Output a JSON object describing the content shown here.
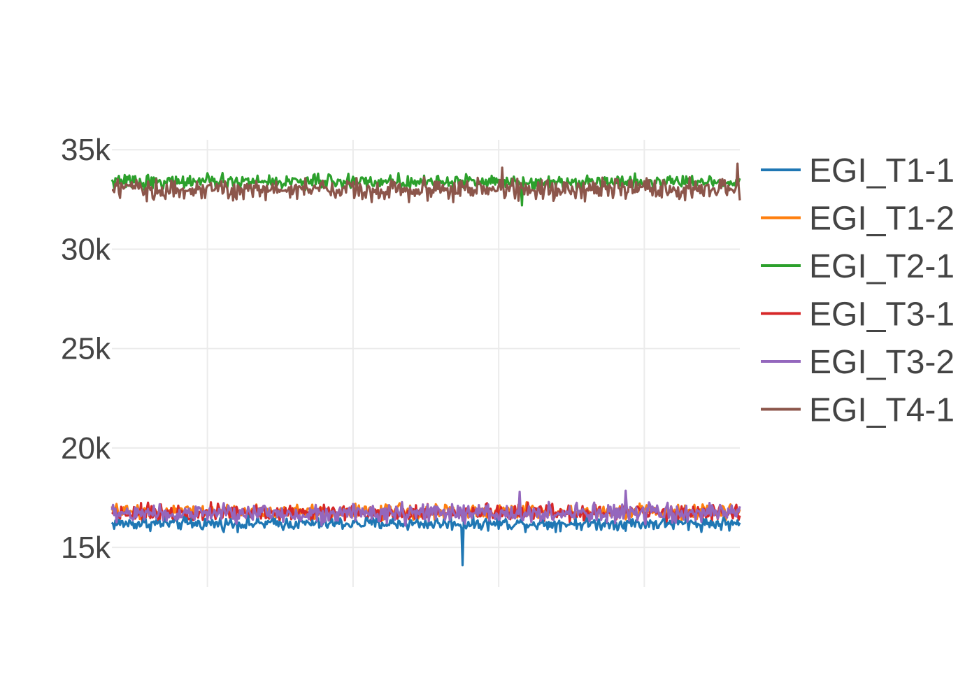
{
  "chart_data": {
    "type": "line",
    "title": "",
    "xlabel": "",
    "ylabel": "",
    "x": {
      "count": 540,
      "start": 0,
      "end": 539,
      "tick_values": [
        82,
        207,
        332,
        457
      ]
    },
    "ylim": [
      13000,
      35500
    ],
    "y_ticks": [
      15000,
      20000,
      25000,
      30000,
      35000
    ],
    "y_tick_labels": [
      "15k",
      "20k",
      "25k",
      "30k",
      "35k"
    ],
    "grid": true,
    "legend_position": "right",
    "series": [
      {
        "name": "EGI_T1-1",
        "color": "#1f77b4",
        "mean": 16200,
        "noise": 160,
        "spikes": [
          {
            "x": 301,
            "y": 14100
          }
        ]
      },
      {
        "name": "EGI_T1-2",
        "color": "#ff7f0e",
        "mean": 16800,
        "noise": 180,
        "spikes": []
      },
      {
        "name": "EGI_T2-1",
        "color": "#2ca02c",
        "mean": 33400,
        "noise": 170,
        "spikes": [
          {
            "x": 352,
            "y": 32200
          }
        ]
      },
      {
        "name": "EGI_T3-1",
        "color": "#d62728",
        "mean": 16750,
        "noise": 200,
        "spikes": []
      },
      {
        "name": "EGI_T3-2",
        "color": "#9467bd",
        "mean": 16700,
        "noise": 230,
        "spikes": [
          {
            "x": 350,
            "y": 17800
          },
          {
            "x": 441,
            "y": 17850
          }
        ]
      },
      {
        "name": "EGI_T4-1",
        "color": "#8c564b",
        "mean": 33000,
        "noise": 260,
        "spikes": [
          {
            "x": 335,
            "y": 34100
          },
          {
            "x": 537,
            "y": 34300
          }
        ]
      }
    ]
  }
}
